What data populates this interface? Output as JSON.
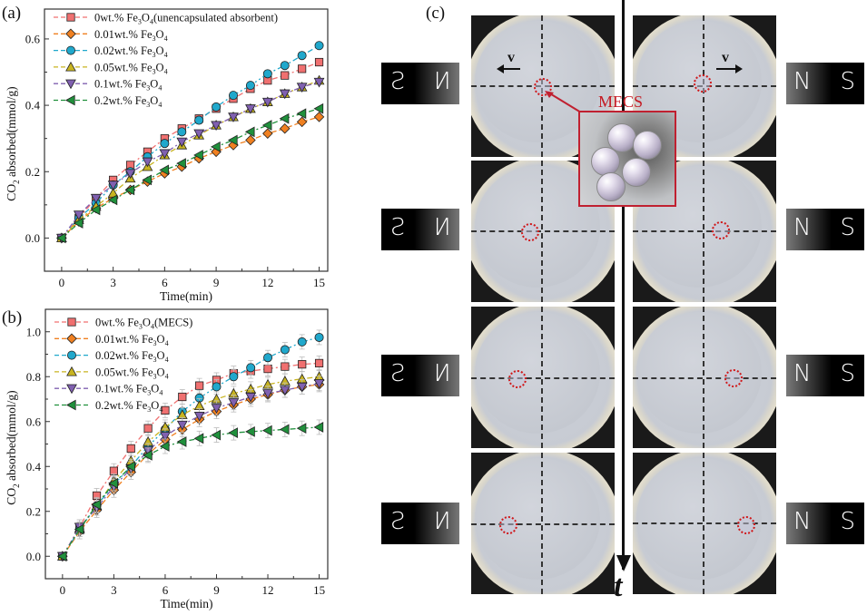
{
  "panels": {
    "a": "(a)",
    "b": "(b)",
    "c": "(c)"
  },
  "chart_data": [
    {
      "type": "line",
      "panel": "a",
      "title": "",
      "xlabel": "Time(min)",
      "ylabel": "CO2 absorbed(mmol/g)",
      "xlim": [
        -1,
        15.5
      ],
      "ylim": [
        -0.1,
        0.69
      ],
      "xticks": [
        0,
        3,
        6,
        9,
        12,
        15
      ],
      "yticks": [
        0.0,
        0.2,
        0.4,
        0.6
      ],
      "legend_position": "top-left",
      "x": [
        0,
        1,
        2,
        3,
        4,
        5,
        6,
        7,
        8,
        9,
        10,
        11,
        12,
        13,
        14,
        15
      ],
      "series": [
        {
          "name": "0wt.% Fe3O4(unencapsulated absorbent)",
          "label_main": "0wt.% Fe",
          "label_tail": "(unencapsulated absorbent)",
          "marker": "square",
          "color": "#f07070",
          "values": [
            0,
            0.06,
            0.12,
            0.175,
            0.22,
            0.26,
            0.3,
            0.33,
            0.36,
            0.39,
            0.42,
            0.45,
            0.475,
            0.49,
            0.51,
            0.53
          ]
        },
        {
          "name": "0.01wt.% Fe3O4",
          "label_main": "0.01wt.% Fe",
          "label_tail": "",
          "marker": "diamond",
          "color": "#f08020",
          "values": [
            0,
            0.05,
            0.09,
            0.12,
            0.145,
            0.17,
            0.195,
            0.215,
            0.24,
            0.26,
            0.28,
            0.295,
            0.315,
            0.33,
            0.35,
            0.365
          ]
        },
        {
          "name": "0.02wt.% Fe3O4",
          "label_main": "0.02wt.% Fe",
          "label_tail": "",
          "marker": "circle",
          "color": "#20a8cc",
          "values": [
            0,
            0.06,
            0.105,
            0.16,
            0.2,
            0.245,
            0.285,
            0.32,
            0.355,
            0.395,
            0.43,
            0.46,
            0.495,
            0.52,
            0.55,
            0.58
          ]
        },
        {
          "name": "0.05wt.% Fe3O4",
          "label_main": "0.05wt.% Fe",
          "label_tail": "",
          "marker": "triangle-up",
          "color": "#c8b420",
          "values": [
            0,
            0.055,
            0.095,
            0.135,
            0.18,
            0.215,
            0.25,
            0.28,
            0.31,
            0.34,
            0.365,
            0.39,
            0.41,
            0.435,
            0.455,
            0.475
          ]
        },
        {
          "name": "0.1wt.% Fe3O4",
          "label_main": "0.1wt.% Fe",
          "label_tail": "",
          "marker": "triangle-down",
          "color": "#8060b0",
          "values": [
            0,
            0.07,
            0.12,
            0.16,
            0.195,
            0.23,
            0.255,
            0.29,
            0.315,
            0.34,
            0.365,
            0.39,
            0.41,
            0.435,
            0.455,
            0.47
          ]
        },
        {
          "name": "0.2wt.% Fe3O4",
          "label_main": "0.2wt.% Fe",
          "label_tail": "",
          "marker": "triangle-left",
          "color": "#20903c",
          "values": [
            0,
            0.045,
            0.085,
            0.115,
            0.145,
            0.175,
            0.205,
            0.225,
            0.25,
            0.275,
            0.295,
            0.32,
            0.34,
            0.36,
            0.375,
            0.39
          ]
        }
      ]
    },
    {
      "type": "line",
      "panel": "b",
      "title": "",
      "xlabel": "Time(min)",
      "ylabel": "CO2 absorbed(mmol/g)",
      "xlim": [
        -1,
        15.5
      ],
      "ylim": [
        -0.1,
        1.1
      ],
      "xticks": [
        0,
        3,
        6,
        9,
        12,
        15
      ],
      "yticks": [
        0.0,
        0.2,
        0.4,
        0.6,
        0.8,
        1.0
      ],
      "legend_position": "top-left",
      "error_bars": true,
      "x": [
        0,
        1,
        2,
        3,
        4,
        5,
        6,
        7,
        8,
        9,
        10,
        11,
        12,
        13,
        14,
        15
      ],
      "series": [
        {
          "name": "0wt.% Fe3O4(MECS)",
          "label_main": "0wt.% Fe",
          "label_tail": "(MECS)",
          "marker": "square",
          "color": "#f07070",
          "values": [
            0,
            0.13,
            0.27,
            0.38,
            0.48,
            0.57,
            0.65,
            0.71,
            0.76,
            0.785,
            0.815,
            0.825,
            0.835,
            0.845,
            0.855,
            0.86
          ]
        },
        {
          "name": "0.01wt.% Fe3O4",
          "label_main": "0.01wt.% Fe",
          "label_tail": "",
          "marker": "diamond",
          "color": "#f08020",
          "values": [
            0,
            0.11,
            0.205,
            0.295,
            0.375,
            0.455,
            0.52,
            0.565,
            0.61,
            0.645,
            0.675,
            0.7,
            0.72,
            0.74,
            0.755,
            0.765
          ]
        },
        {
          "name": "0.02wt.% Fe3O4",
          "label_main": "0.02wt.% Fe",
          "label_tail": "",
          "marker": "circle",
          "color": "#20a8cc",
          "values": [
            0,
            0.12,
            0.225,
            0.32,
            0.4,
            0.49,
            0.565,
            0.645,
            0.705,
            0.755,
            0.8,
            0.84,
            0.885,
            0.92,
            0.955,
            0.975
          ]
        },
        {
          "name": "0.05wt.% Fe3O4",
          "label_main": "0.05wt.% Fe",
          "label_tail": "",
          "marker": "triangle-up",
          "color": "#c8b420",
          "values": [
            0,
            0.12,
            0.225,
            0.335,
            0.425,
            0.51,
            0.575,
            0.63,
            0.67,
            0.7,
            0.725,
            0.745,
            0.765,
            0.78,
            0.79,
            0.8
          ]
        },
        {
          "name": "0.1wt.% Fe3O4",
          "label_main": "0.1wt.% Fe",
          "label_tail": "",
          "marker": "triangle-down",
          "color": "#8060b0",
          "values": [
            0,
            0.13,
            0.215,
            0.31,
            0.39,
            0.47,
            0.535,
            0.585,
            0.625,
            0.66,
            0.685,
            0.71,
            0.725,
            0.74,
            0.755,
            0.77
          ]
        },
        {
          "name": "0.2wt.% Fe3O4",
          "label_main": "0.2wt.% Fe",
          "label_tail": "",
          "marker": "triangle-left",
          "color": "#20903c",
          "values": [
            0,
            0.12,
            0.23,
            0.325,
            0.4,
            0.45,
            0.49,
            0.51,
            0.525,
            0.54,
            0.55,
            0.555,
            0.56,
            0.565,
            0.57,
            0.575
          ]
        }
      ]
    }
  ],
  "photo_panel": {
    "mecs_label": "MECS",
    "velocity_label": "v",
    "time_label": "t",
    "magnet_left": {
      "left_pole": "S",
      "right_pole": "N",
      "mirrored": true
    },
    "magnet_right": {
      "left_pole": "N",
      "right_pole": "S"
    },
    "rows": 4,
    "columns": 2,
    "left_column_direction": "left",
    "right_column_direction": "right"
  }
}
